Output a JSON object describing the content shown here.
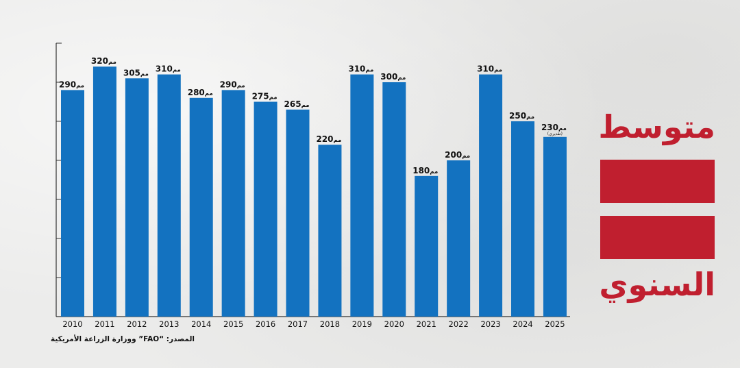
{
  "title": {
    "line1": "متوسط",
    "line2": "السنوي"
  },
  "source": "المصدر: “FAO” ووزارة الزراعة الأمريكية",
  "colors": {
    "bar": "#1372c0",
    "accent": "#c01f2f",
    "background": "#ececeb"
  },
  "chart_data": {
    "type": "bar",
    "categories": [
      "2010",
      "2011",
      "2012",
      "2013",
      "2014",
      "2015",
      "2016",
      "2017",
      "2018",
      "2019",
      "2020",
      "2021",
      "2022",
      "2023",
      "2024",
      "2025"
    ],
    "values": [
      290,
      320,
      305,
      310,
      280,
      290,
      275,
      265,
      220,
      310,
      300,
      180,
      200,
      310,
      250,
      230
    ],
    "value_unit": "مم",
    "annotations": [
      {
        "category": "2025",
        "text": "(تقديري)"
      }
    ],
    "ylim": [
      0,
      350
    ],
    "y_ticks": [
      0,
      50,
      100,
      150,
      200,
      250,
      300,
      350
    ],
    "y_tick_labels_shown": false,
    "grid": false,
    "legend": "none"
  }
}
